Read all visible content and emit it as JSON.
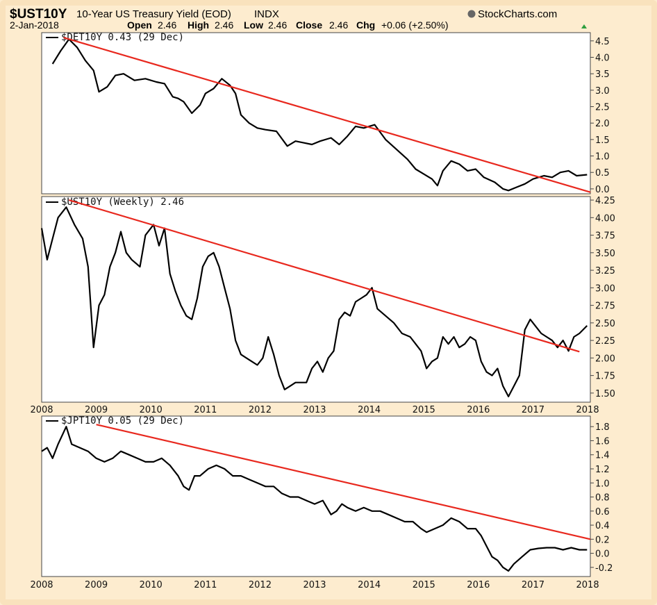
{
  "header": {
    "symbol": "$UST10Y",
    "description": "10-Year US Treasury Yield (EOD)",
    "exchange": "INDX",
    "brand": "StockCharts.com",
    "date": "2-Jan-2018",
    "open_label": "Open",
    "open_value": "2.46",
    "high_label": "High",
    "high_value": "2.46",
    "low_label": "Low",
    "low_value": "2.46",
    "close_label": "Close",
    "close_value": "2.46",
    "chg_label": "Chg",
    "chg_value": "+0.06 (+2.50%)"
  },
  "colors": {
    "background": "#fdeccf",
    "plot_background": "#ffffff",
    "price_line": "#000000",
    "trend_line": "#e8281e",
    "up_arrow": "#2e9e3e"
  },
  "chart_data": [
    {
      "type": "line",
      "legend": "$DET10Y 0.43 (29 Dec)",
      "x_range": [
        2008.0,
        2018.05
      ],
      "ylim": [
        -0.15,
        4.75
      ],
      "yticks": [
        "4.5",
        "4.0",
        "3.5",
        "3.0",
        "2.5",
        "2.0",
        "1.5",
        "1.0",
        "0.5",
        "0.0"
      ],
      "x_tick_labels": [],
      "series": [
        {
          "x": [
            2008.2,
            2008.35,
            2008.5,
            2008.65,
            2008.8,
            2008.95,
            2009.05,
            2009.2,
            2009.35,
            2009.5,
            2009.7,
            2009.9,
            2010.1,
            2010.25,
            2010.4,
            2010.5,
            2010.6,
            2010.75,
            2010.9,
            2011.0,
            2011.15,
            2011.3,
            2011.45,
            2011.55,
            2011.65,
            2011.8,
            2011.95,
            2012.1,
            2012.3,
            2012.5,
            2012.65,
            2012.8,
            2012.95,
            2013.1,
            2013.3,
            2013.45,
            2013.6,
            2013.75,
            2013.9,
            2014.1,
            2014.3,
            2014.5,
            2014.7,
            2014.85,
            2015.0,
            2015.15,
            2015.25,
            2015.35,
            2015.5,
            2015.65,
            2015.8,
            2015.95,
            2016.1,
            2016.3,
            2016.45,
            2016.55,
            2016.7,
            2016.85,
            2017.0,
            2017.2,
            2017.35,
            2017.5,
            2017.65,
            2017.8,
            2017.99
          ],
          "y": [
            3.8,
            4.2,
            4.55,
            4.3,
            3.9,
            3.6,
            2.95,
            3.1,
            3.45,
            3.5,
            3.3,
            3.35,
            3.25,
            3.2,
            2.8,
            2.75,
            2.65,
            2.3,
            2.55,
            2.9,
            3.05,
            3.35,
            3.15,
            2.9,
            2.25,
            2.0,
            1.85,
            1.8,
            1.75,
            1.3,
            1.45,
            1.4,
            1.35,
            1.45,
            1.55,
            1.35,
            1.6,
            1.9,
            1.85,
            1.95,
            1.5,
            1.2,
            0.9,
            0.6,
            0.45,
            0.3,
            0.1,
            0.55,
            0.85,
            0.75,
            0.55,
            0.6,
            0.35,
            0.2,
            0.0,
            -0.05,
            0.05,
            0.15,
            0.3,
            0.4,
            0.35,
            0.5,
            0.55,
            0.4,
            0.43
          ]
        }
      ],
      "trend_line": {
        "x": [
          2008.4,
          2018.05
        ],
        "y": [
          4.6,
          -0.1
        ]
      }
    },
    {
      "type": "line",
      "legend": "$UST10Y (Weekly) 2.46",
      "x_range": [
        2008.0,
        2018.05
      ],
      "ylim": [
        1.37,
        4.3
      ],
      "yticks": [
        "4.25",
        "4.00",
        "3.75",
        "3.50",
        "3.25",
        "3.00",
        "2.75",
        "2.50",
        "2.25",
        "2.00",
        "1.75",
        "1.50"
      ],
      "x_tick_labels": [
        "2008",
        "2009",
        "2010",
        "2011",
        "2012",
        "2013",
        "2014",
        "2015",
        "2016",
        "2017",
        "2018"
      ],
      "series": [
        {
          "x": [
            2008.0,
            2008.1,
            2008.2,
            2008.3,
            2008.45,
            2008.6,
            2008.75,
            2008.85,
            2008.95,
            2009.05,
            2009.15,
            2009.25,
            2009.35,
            2009.45,
            2009.55,
            2009.65,
            2009.8,
            2009.9,
            2010.05,
            2010.15,
            2010.25,
            2010.35,
            2010.45,
            2010.55,
            2010.65,
            2010.75,
            2010.85,
            2010.95,
            2011.05,
            2011.15,
            2011.25,
            2011.35,
            2011.45,
            2011.55,
            2011.65,
            2011.75,
            2011.85,
            2011.95,
            2012.05,
            2012.15,
            2012.25,
            2012.35,
            2012.45,
            2012.55,
            2012.65,
            2012.75,
            2012.85,
            2012.95,
            2013.05,
            2013.15,
            2013.25,
            2013.35,
            2013.45,
            2013.55,
            2013.65,
            2013.75,
            2013.85,
            2013.95,
            2014.05,
            2014.15,
            2014.3,
            2014.45,
            2014.6,
            2014.75,
            2014.85,
            2014.95,
            2015.05,
            2015.15,
            2015.25,
            2015.35,
            2015.45,
            2015.55,
            2015.65,
            2015.75,
            2015.85,
            2015.95,
            2016.05,
            2016.15,
            2016.25,
            2016.35,
            2016.45,
            2016.55,
            2016.65,
            2016.75,
            2016.85,
            2016.95,
            2017.05,
            2017.15,
            2017.25,
            2017.35,
            2017.45,
            2017.55,
            2017.65,
            2017.75,
            2017.85,
            2017.99
          ],
          "y": [
            3.85,
            3.4,
            3.7,
            4.0,
            4.15,
            3.9,
            3.7,
            3.3,
            2.15,
            2.75,
            2.9,
            3.3,
            3.5,
            3.8,
            3.5,
            3.4,
            3.3,
            3.75,
            3.9,
            3.6,
            3.85,
            3.2,
            2.95,
            2.75,
            2.6,
            2.55,
            2.85,
            3.3,
            3.45,
            3.5,
            3.3,
            3.0,
            2.7,
            2.25,
            2.05,
            2.0,
            1.95,
            1.9,
            2.0,
            2.3,
            2.05,
            1.75,
            1.55,
            1.6,
            1.65,
            1.65,
            1.65,
            1.85,
            1.95,
            1.8,
            2.0,
            2.1,
            2.55,
            2.65,
            2.6,
            2.8,
            2.85,
            2.9,
            3.0,
            2.7,
            2.6,
            2.5,
            2.35,
            2.3,
            2.2,
            2.1,
            1.85,
            1.95,
            2.0,
            2.3,
            2.2,
            2.3,
            2.15,
            2.2,
            2.3,
            2.25,
            1.95,
            1.8,
            1.75,
            1.85,
            1.6,
            1.45,
            1.6,
            1.75,
            2.4,
            2.55,
            2.45,
            2.35,
            2.3,
            2.25,
            2.15,
            2.25,
            2.1,
            2.3,
            2.35,
            2.46
          ]
        }
      ],
      "trend_line": {
        "x": [
          2008.5,
          2017.85
        ],
        "y": [
          4.25,
          2.09
        ]
      }
    },
    {
      "type": "line",
      "legend": "$JPT10Y 0.05 (29 Dec)",
      "x_range": [
        2008.0,
        2018.05
      ],
      "ylim": [
        -0.33,
        1.95
      ],
      "yticks": [
        "1.8",
        "1.6",
        "1.4",
        "1.2",
        "1.0",
        "0.8",
        "0.6",
        "0.4",
        "0.2",
        "0.0",
        "-0.2"
      ],
      "x_tick_labels": [
        "2008",
        "2009",
        "2010",
        "2011",
        "2012",
        "2013",
        "2014",
        "2015",
        "2016",
        "2017",
        "2018"
      ],
      "series": [
        {
          "x": [
            2008.0,
            2008.1,
            2008.2,
            2008.3,
            2008.45,
            2008.55,
            2008.7,
            2008.85,
            2009.0,
            2009.15,
            2009.3,
            2009.45,
            2009.6,
            2009.75,
            2009.9,
            2010.05,
            2010.2,
            2010.35,
            2010.5,
            2010.6,
            2010.7,
            2010.8,
            2010.9,
            2011.05,
            2011.2,
            2011.35,
            2011.5,
            2011.65,
            2011.8,
            2011.95,
            2012.1,
            2012.25,
            2012.4,
            2012.55,
            2012.7,
            2012.85,
            2013.0,
            2013.15,
            2013.3,
            2013.4,
            2013.5,
            2013.6,
            2013.75,
            2013.9,
            2014.05,
            2014.2,
            2014.35,
            2014.5,
            2014.65,
            2014.8,
            2014.95,
            2015.05,
            2015.2,
            2015.35,
            2015.5,
            2015.65,
            2015.8,
            2015.95,
            2016.05,
            2016.15,
            2016.25,
            2016.35,
            2016.45,
            2016.55,
            2016.65,
            2016.8,
            2016.95,
            2017.1,
            2017.25,
            2017.4,
            2017.55,
            2017.7,
            2017.85,
            2017.99
          ],
          "y": [
            1.45,
            1.5,
            1.35,
            1.55,
            1.8,
            1.55,
            1.5,
            1.45,
            1.35,
            1.3,
            1.35,
            1.45,
            1.4,
            1.35,
            1.3,
            1.3,
            1.35,
            1.25,
            1.1,
            0.95,
            0.9,
            1.1,
            1.1,
            1.2,
            1.25,
            1.2,
            1.1,
            1.1,
            1.05,
            1.0,
            0.95,
            0.95,
            0.85,
            0.8,
            0.8,
            0.75,
            0.7,
            0.75,
            0.55,
            0.6,
            0.7,
            0.65,
            0.6,
            0.65,
            0.6,
            0.6,
            0.55,
            0.5,
            0.45,
            0.45,
            0.35,
            0.3,
            0.35,
            0.4,
            0.5,
            0.45,
            0.35,
            0.35,
            0.25,
            0.1,
            -0.05,
            -0.1,
            -0.2,
            -0.25,
            -0.15,
            -0.05,
            0.05,
            0.07,
            0.08,
            0.08,
            0.05,
            0.08,
            0.05,
            0.05
          ]
        }
      ],
      "trend_line": {
        "x": [
          2009.0,
          2018.05
        ],
        "y": [
          1.83,
          0.2
        ]
      }
    }
  ]
}
